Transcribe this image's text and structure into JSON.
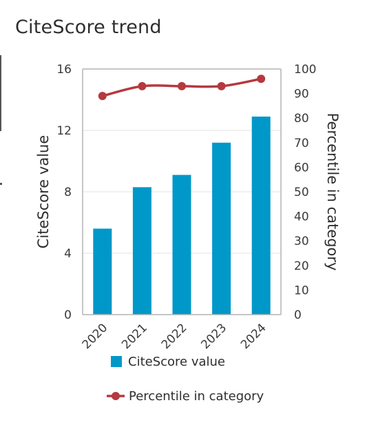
{
  "title": "CiteScore trend",
  "colors": {
    "bar": "#0098c8",
    "line": "#b5393f",
    "grid": "#e3e3e3",
    "axis": "#b3b3b3"
  },
  "chart_data": {
    "type": "bar+line",
    "categories": [
      "2020",
      "2021",
      "2022",
      "2023",
      "2024"
    ],
    "series": [
      {
        "name": "CiteScore value",
        "type": "bar",
        "axis": "left",
        "values": [
          5.6,
          8.3,
          9.1,
          11.2,
          12.9
        ]
      },
      {
        "name": "Percentile in category",
        "type": "line",
        "axis": "right",
        "values": [
          89,
          93,
          93,
          93,
          96
        ]
      }
    ],
    "ylabel": "CiteScore value",
    "ylabel_right": "Percentile in category",
    "ylim": [
      0,
      16
    ],
    "yticks": [
      "0",
      "4",
      "8",
      "12",
      "16"
    ],
    "ylim_right": [
      0,
      100
    ],
    "yticks_right": [
      "0",
      "10",
      "20",
      "30",
      "40",
      "50",
      "60",
      "70",
      "80",
      "90",
      "100"
    ],
    "grid": true,
    "legend": [
      "CiteScore value",
      "Percentile in category"
    ],
    "legend_position": "bottom"
  }
}
